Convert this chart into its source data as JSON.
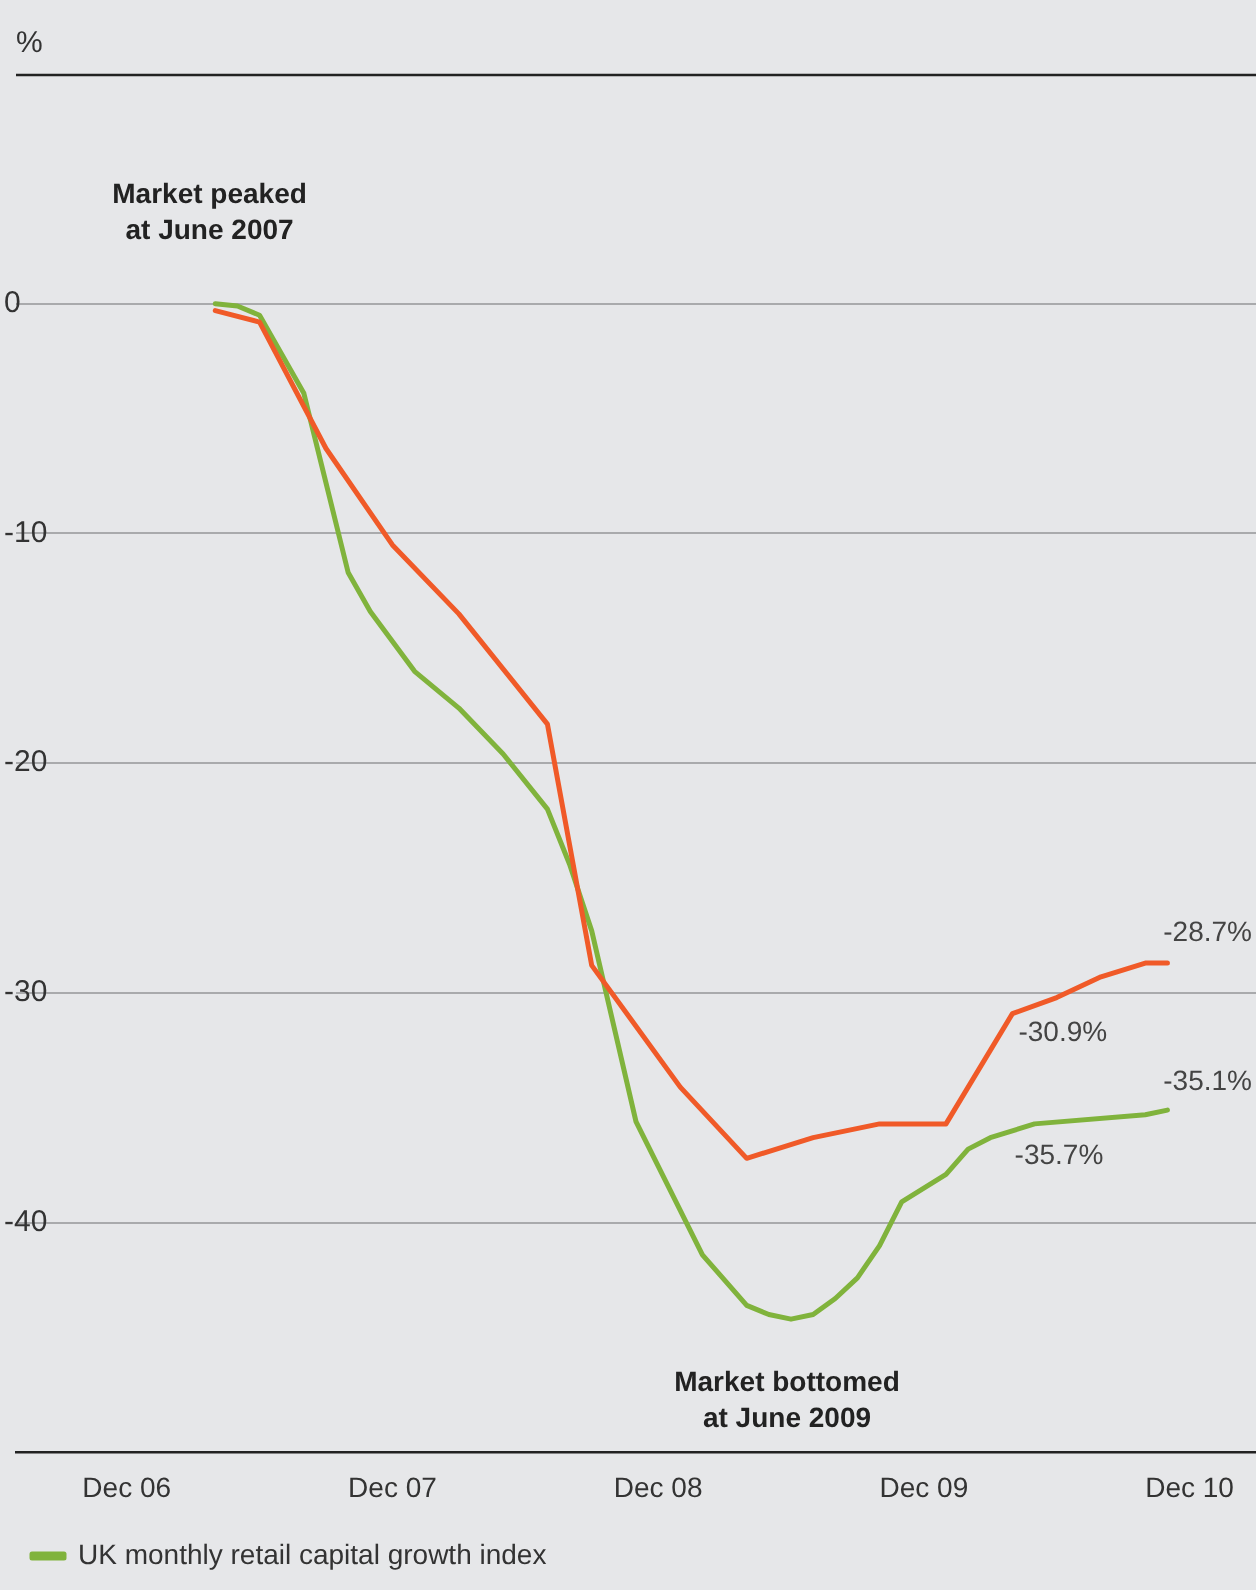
{
  "chart_data": {
    "type": "line",
    "ylabel": "%",
    "xlim": [
      "2006-07",
      "2011-03"
    ],
    "xticks": [
      {
        "value": "2006-12",
        "label": "Dec 06"
      },
      {
        "value": "2007-12",
        "label": "Dec 07"
      },
      {
        "value": "2008-12",
        "label": "Dec 08"
      },
      {
        "value": "2009-12",
        "label": "Dec 09"
      },
      {
        "value": "2010-12",
        "label": "Dec 10"
      }
    ],
    "ylim": [
      -50,
      10
    ],
    "yticks": [
      -40,
      -30,
      -20,
      -10,
      0
    ],
    "grid": "y",
    "legend": "bottom",
    "marker": "none",
    "line_style": "solid",
    "series": [
      {
        "color": "#f05a28",
        "x": [
          "2007-04",
          "2007-06",
          "2007-09",
          "2007-12",
          "2008-03",
          "2008-07",
          "2008-09",
          "2009-01",
          "2009-04",
          "2009-07",
          "2009-10",
          "2010-01",
          "2010-04",
          "2010-06",
          "2010-08",
          "2010-10",
          "2010-11"
        ],
        "values": [
          -0.3,
          -0.8,
          -6.3,
          -10.5,
          -13.5,
          -18.3,
          -28.8,
          -34.1,
          -37.2,
          -36.3,
          -35.7,
          -35.7,
          -30.9,
          -30.2,
          -29.3,
          -28.7,
          -28.7
        ]
      },
      {
        "name": "UK monthly retail capital growth index",
        "color": "#80b33c",
        "x": [
          "2007-04",
          "2007-05",
          "2007-06",
          "2007-08",
          "2007-10",
          "2007-11",
          "2008-01",
          "2008-03",
          "2008-05",
          "2008-07",
          "2008-08",
          "2008-09",
          "2008-11",
          "2009-02",
          "2009-04",
          "2009-05",
          "2009-06",
          "2009-07",
          "2009-08",
          "2009-09",
          "2009-10",
          "2009-11",
          "2010-01",
          "2010-02",
          "2010-03",
          "2010-05",
          "2010-10",
          "2010-11"
        ],
        "values": [
          0,
          -0.1,
          -0.5,
          -3.9,
          -11.7,
          -13.4,
          -16.0,
          -17.6,
          -19.6,
          -22.0,
          -24.4,
          -27.3,
          -35.6,
          -41.4,
          -43.6,
          -44.0,
          -44.2,
          -44.0,
          -43.3,
          -42.4,
          -41.0,
          -39.1,
          -37.9,
          -36.8,
          -36.3,
          -35.7,
          -35.3,
          -35.1
        ]
      }
    ],
    "annotations": [
      {
        "text": "Market peaked at June 2007",
        "x": "2007-06",
        "y": 0
      },
      {
        "text": "Market bottomed at June 2009",
        "x": "2009-06",
        "y": -44.2
      },
      {
        "text": "-28.7%",
        "x": "2010-11",
        "y": -28.7
      },
      {
        "text": "-30.9%",
        "x": "2010-04",
        "y": -30.9
      },
      {
        "text": "-35.1%",
        "x": "2010-11",
        "y": -35.1
      },
      {
        "text": "-35.7%",
        "x": "2010-05",
        "y": -35.7
      }
    ]
  }
}
